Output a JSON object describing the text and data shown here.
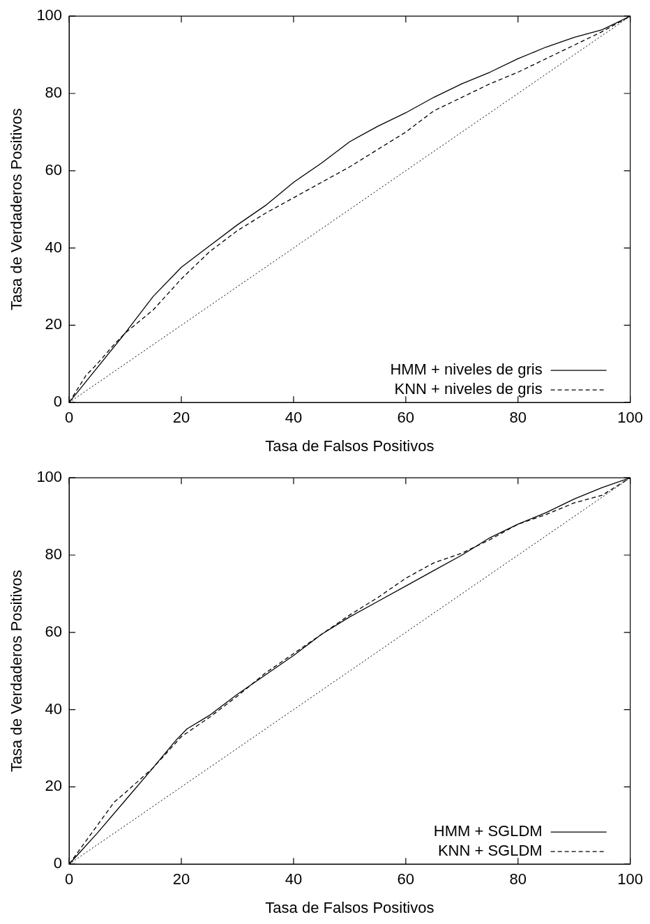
{
  "chart_data": [
    {
      "type": "line",
      "xlabel": "Tasa de Falsos Positivos",
      "ylabel": "Tasa de Verdaderos Positivos",
      "xlim": [
        0,
        100
      ],
      "ylim": [
        0,
        100
      ],
      "xticks": [
        0,
        20,
        40,
        60,
        80,
        100
      ],
      "yticks": [
        0,
        20,
        40,
        60,
        80,
        100
      ],
      "grid": false,
      "legend": "bottom right",
      "marker": "none",
      "series": [
        {
          "name": "HMM + niveles de gris",
          "color": "#000000",
          "line_style": "solid",
          "x": [
            0,
            5,
            10,
            15,
            20,
            25,
            30,
            35,
            40,
            45,
            50,
            55,
            60,
            65,
            70,
            75,
            80,
            85,
            90,
            95,
            100
          ],
          "values": [
            0,
            9,
            18,
            27.5,
            35,
            40.5,
            46,
            51,
            57,
            62,
            67.5,
            71.5,
            75,
            79,
            82.5,
            85.5,
            89,
            92,
            94.5,
            96.5,
            100
          ]
        },
        {
          "name": "KNN + niveles de gris",
          "color": "#000000",
          "line_style": "dashed",
          "x": [
            0,
            3,
            5,
            8,
            10,
            15,
            20,
            25,
            30,
            35,
            40,
            45,
            50,
            55,
            60,
            65,
            70,
            75,
            80,
            85,
            90,
            95,
            100
          ],
          "values": [
            0,
            7,
            10,
            15,
            18,
            24,
            32,
            39,
            44.5,
            49,
            53,
            57,
            61,
            65.5,
            70,
            75.5,
            79,
            82.5,
            85.5,
            89,
            92.5,
            96,
            100
          ]
        },
        {
          "color": "#000000",
          "line_style": "dotted",
          "x": [
            0,
            100
          ],
          "values": [
            0,
            100
          ]
        }
      ]
    },
    {
      "type": "line",
      "xlabel": "Tasa de Falsos Positivos",
      "ylabel": "Tasa de Verdaderos Positivos",
      "xlim": [
        0,
        100
      ],
      "ylim": [
        0,
        100
      ],
      "xticks": [
        0,
        20,
        40,
        60,
        80,
        100
      ],
      "yticks": [
        0,
        20,
        40,
        60,
        80,
        100
      ],
      "grid": false,
      "legend": "bottom right",
      "marker": "none",
      "series": [
        {
          "name": "HMM + SGLDM",
          "color": "#000000",
          "line_style": "solid",
          "x": [
            0,
            5,
            10,
            15,
            19,
            21,
            25,
            30,
            35,
            40,
            45,
            50,
            55,
            60,
            65,
            70,
            75,
            80,
            85,
            90,
            95,
            100
          ],
          "values": [
            0,
            8,
            16.5,
            25,
            32,
            35,
            38.5,
            44,
            49,
            54,
            59.5,
            64,
            68,
            72,
            76,
            80,
            84.5,
            88,
            91,
            94.5,
            97.5,
            100
          ]
        },
        {
          "name": "KNN + SGLDM",
          "color": "#000000",
          "line_style": "dashed",
          "x": [
            0,
            5,
            8,
            10,
            15,
            20,
            25,
            30,
            35,
            40,
            45,
            50,
            55,
            60,
            65,
            70,
            75,
            80,
            85,
            90,
            95,
            100
          ],
          "values": [
            0,
            10,
            16,
            18.5,
            25,
            33,
            38,
            43.5,
            49.5,
            54.5,
            59.5,
            64.5,
            69,
            74,
            78,
            80.5,
            84,
            88,
            90.5,
            93.5,
            95.5,
            100
          ]
        },
        {
          "color": "#000000",
          "line_style": "dotted",
          "x": [
            0,
            100
          ],
          "values": [
            0,
            100
          ]
        }
      ]
    }
  ]
}
